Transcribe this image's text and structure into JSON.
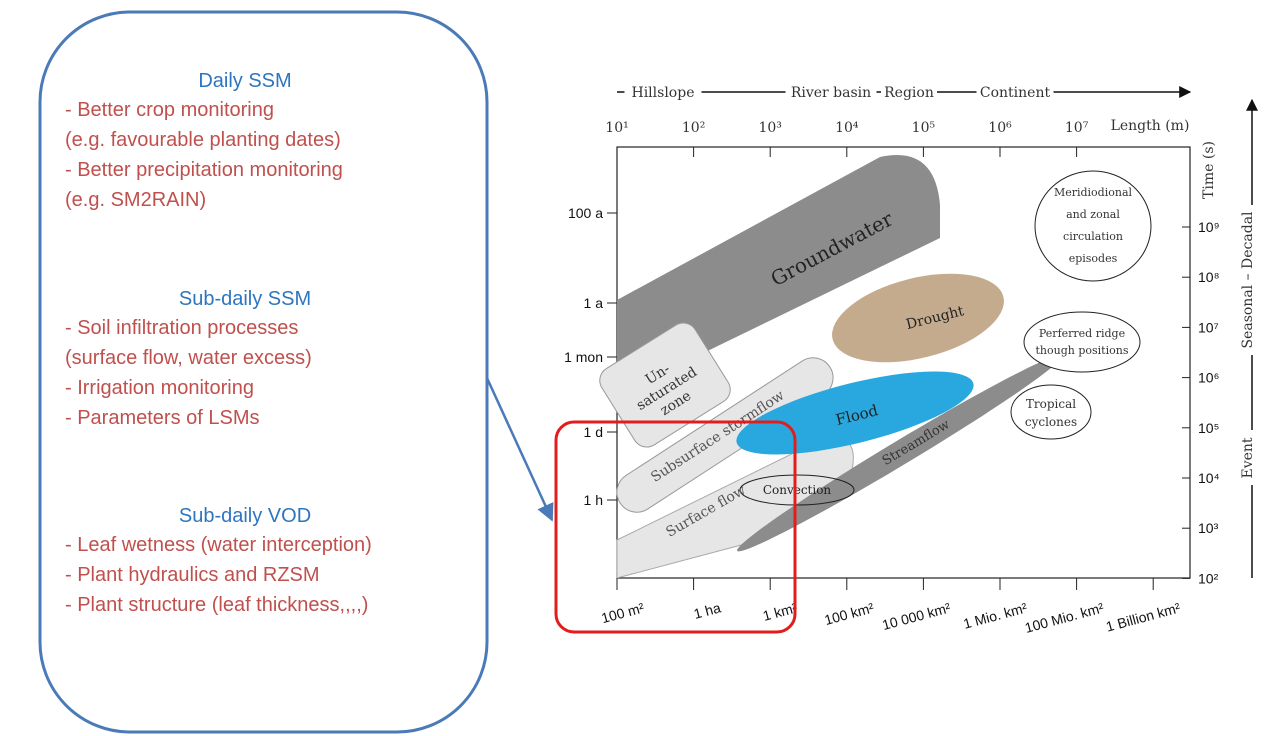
{
  "left_panel": {
    "sections": [
      {
        "heading": "Daily SSM",
        "items": [
          "- Better crop monitoring",
          "(e.g. favourable planting dates)",
          "- Better precipitation monitoring",
          "(e.g. SM2RAIN)"
        ]
      },
      {
        "heading": "Sub-daily SSM",
        "items": [
          "- Soil infiltration processes",
          "(surface flow, water excess)",
          "- Irrigation monitoring",
          "- Parameters of LSMs"
        ]
      },
      {
        "heading": "Sub-daily VOD",
        "items": [
          "- Leaf wetness (water interception)",
          "- Plant hydraulics and RZSM",
          "- Plant structure (leaf thickness,,,,)"
        ]
      }
    ]
  },
  "diagram": {
    "scale_names": [
      "Hillslope",
      "River basin",
      "Region",
      "Continent"
    ],
    "length_ticks": [
      "10¹",
      "10²",
      "10³",
      "10⁴",
      "10⁵",
      "10⁶",
      "10⁷"
    ],
    "length_label": "Length (m)",
    "left_ticks": [
      "100 a",
      "1 a",
      "1 mon",
      "1 d",
      "1 h"
    ],
    "right_ticks": [
      "10⁹",
      "10⁸",
      "10⁷",
      "10⁶",
      "10⁵",
      "10⁴",
      "10³",
      "10²"
    ],
    "time_label": "Time (s)",
    "right_side_labels": [
      "Seasonal – Decadal",
      "Event"
    ],
    "area_ticks": [
      "100 m²",
      "1 ha",
      "1 km²",
      "100 km²",
      "10 000 km²",
      "1 Mio. km²",
      "100 Mio. km²",
      "1 Billion km²"
    ],
    "regions": {
      "groundwater": "Groundwater",
      "drought": "Drought",
      "flood": "Flood",
      "unsaturated": [
        "Un-",
        "saturated",
        "zone"
      ],
      "subsurface": "Subsurface stormflow",
      "surface": "Surface flow",
      "streamflow": "Streamflow",
      "convection": "Convection",
      "meridional": [
        "Meridiodional",
        "and zonal",
        "circulation",
        "episodes"
      ],
      "ridge": [
        "Perferred ridge",
        "though positions"
      ],
      "cyclones": [
        "Tropical",
        "cyclones"
      ]
    }
  }
}
